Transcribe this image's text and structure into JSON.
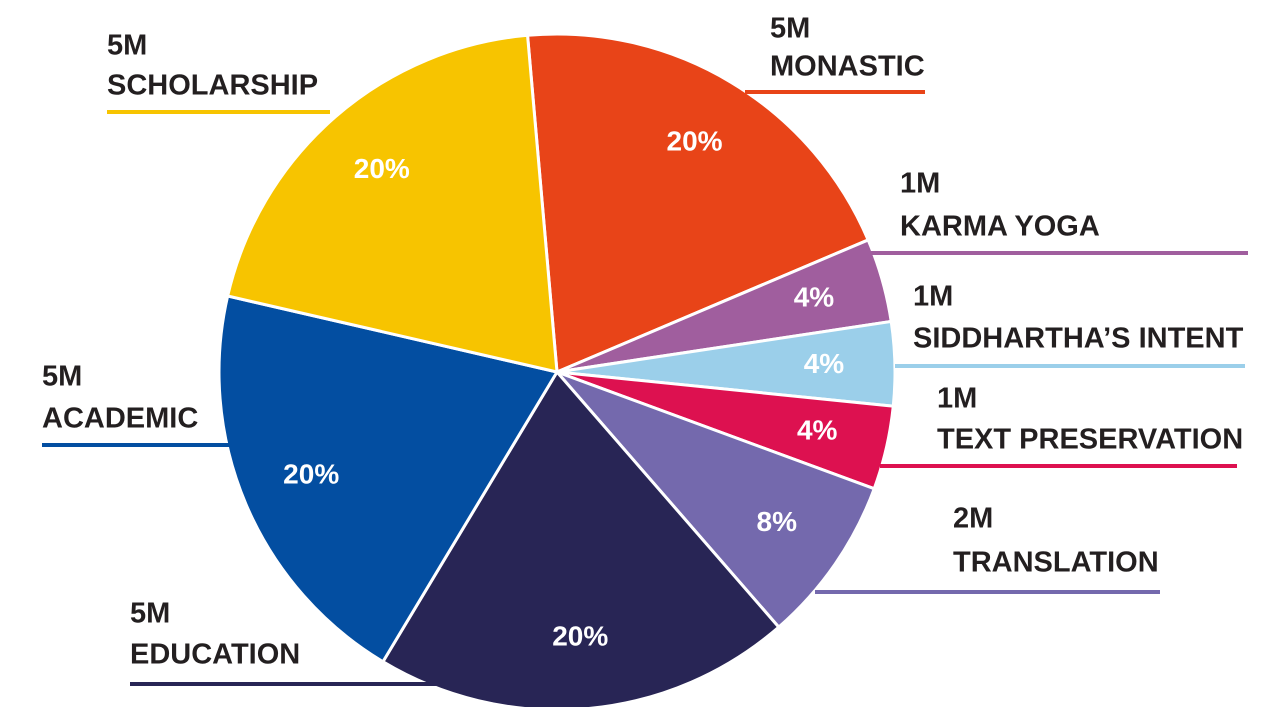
{
  "chart_data": {
    "type": "pie",
    "categories": [
      "MONASTIC",
      "KARMA YOGA",
      "SIDDHARTHA’S INTENT",
      "TEXT PRESERVATION",
      "TRANSLATION",
      "EDUCATION",
      "ACADEMIC",
      "SCHOLARSHIP"
    ],
    "amounts": [
      "5M",
      "1M",
      "1M",
      "1M",
      "2M",
      "5M",
      "5M",
      "5M"
    ],
    "values": [
      20,
      4,
      4,
      4,
      8,
      20,
      20,
      20
    ],
    "value_labels": [
      "20%",
      "4%",
      "4%",
      "4%",
      "8%",
      "20%",
      "20%",
      "20%"
    ],
    "colors": [
      "#e84418",
      "#a05e9e",
      "#9bcfea",
      "#dd1150",
      "#7469ad",
      "#282555",
      "#034ea1",
      "#f7c400"
    ]
  }
}
